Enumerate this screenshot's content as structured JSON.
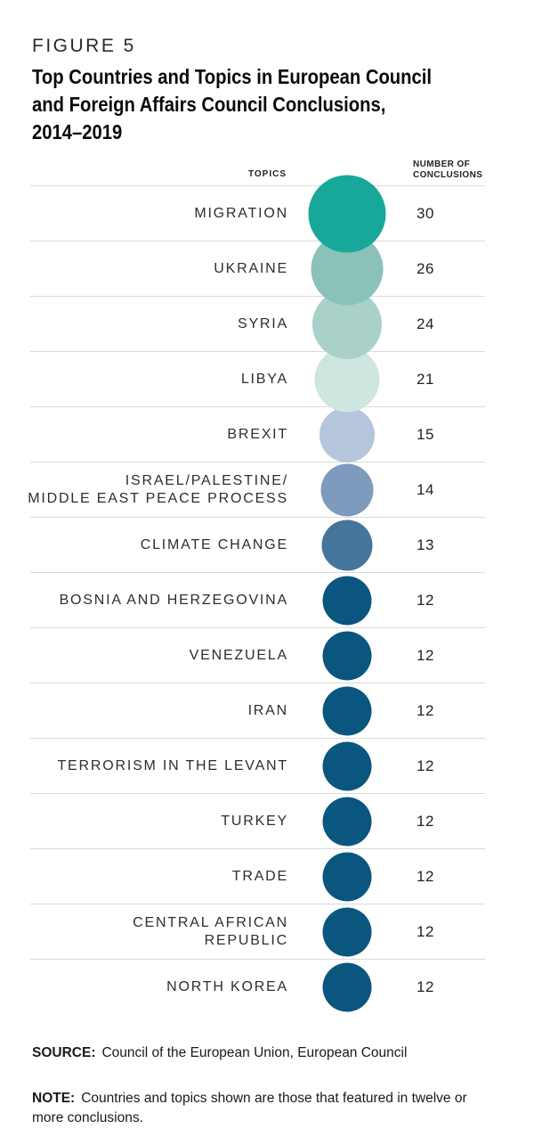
{
  "figure": {
    "label": "FIGURE 5",
    "title_lines": [
      "Top Countries and Topics in European Council",
      "and Foreign Affairs Council Conclusions,",
      "2014–2019"
    ]
  },
  "table": {
    "headers": {
      "topics": "TOPICS",
      "number_lines": [
        "NUMBER OF",
        "CONCLUSIONS"
      ]
    },
    "rows": [
      {
        "topic_lines": [
          "MIGRATION"
        ],
        "value": 30,
        "color": "#17a89a"
      },
      {
        "topic_lines": [
          "UKRAINE"
        ],
        "value": 26,
        "color": "#8ac2b9"
      },
      {
        "topic_lines": [
          "SYRIA"
        ],
        "value": 24,
        "color": "#a9d0c9"
      },
      {
        "topic_lines": [
          "LIBYA"
        ],
        "value": 21,
        "color": "#cfe5e0"
      },
      {
        "topic_lines": [
          "BREXIT"
        ],
        "value": 15,
        "color": "#b5c5dc"
      },
      {
        "topic_lines": [
          "ISRAEL/PALESTINE/",
          "MIDDLE EAST PEACE PROCESS"
        ],
        "value": 14,
        "color": "#7e9abd"
      },
      {
        "topic_lines": [
          "CLIMATE CHANGE"
        ],
        "value": 13,
        "color": "#45749d"
      },
      {
        "topic_lines": [
          "BOSNIA AND HERZEGOVINA"
        ],
        "value": 12,
        "color": "#0b567e"
      },
      {
        "topic_lines": [
          "VENEZUELA"
        ],
        "value": 12,
        "color": "#0b567e"
      },
      {
        "topic_lines": [
          "IRAN"
        ],
        "value": 12,
        "color": "#0b567e"
      },
      {
        "topic_lines": [
          "TERRORISM IN THE LEVANT"
        ],
        "value": 12,
        "color": "#0b567e"
      },
      {
        "topic_lines": [
          "TURKEY"
        ],
        "value": 12,
        "color": "#0b567e"
      },
      {
        "topic_lines": [
          "TRADE"
        ],
        "value": 12,
        "color": "#0b567e"
      },
      {
        "topic_lines": [
          "CENTRAL AFRICAN",
          "REPUBLIC"
        ],
        "value": 12,
        "color": "#0b567e"
      },
      {
        "topic_lines": [
          "NORTH KOREA"
        ],
        "value": 12,
        "color": "#0b567e"
      }
    ]
  },
  "footer": {
    "source_label": "SOURCE:",
    "source_text": "Council of the European Union, European Council",
    "note_label": "NOTE:",
    "note_text": "Countries and topics shown are those that featured in twelve or more conclusions."
  },
  "chart_data": {
    "type": "table",
    "mark": "proportional-circle",
    "title": "Top Countries and Topics in European Council and Foreign Affairs Council Conclusions, 2014–2019",
    "figure_label": "FIGURE 5",
    "category_column_label": "TOPICS",
    "value_column_label": "NUMBER OF CONCLUSIONS",
    "categories": [
      "MIGRATION",
      "UKRAINE",
      "SYRIA",
      "LIBYA",
      "BREXIT",
      "ISRAEL/PALESTINE/MIDDLE EAST PEACE PROCESS",
      "CLIMATE CHANGE",
      "BOSNIA AND HERZEGOVINA",
      "VENEZUELA",
      "IRAN",
      "TERRORISM IN THE LEVANT",
      "TURKEY",
      "TRADE",
      "CENTRAL AFRICAN REPUBLIC",
      "NORTH KOREA"
    ],
    "values": [
      30,
      26,
      24,
      21,
      15,
      14,
      13,
      12,
      12,
      12,
      12,
      12,
      12,
      12,
      12
    ],
    "value_range": [
      12,
      30
    ],
    "encoding": "circle area proportional to number of conclusions",
    "circle_colors": [
      "#17a89a",
      "#8ac2b9",
      "#a9d0c9",
      "#cfe5e0",
      "#b5c5dc",
      "#7e9abd",
      "#45749d",
      "#0b567e",
      "#0b567e",
      "#0b567e",
      "#0b567e",
      "#0b567e",
      "#0b567e",
      "#0b567e",
      "#0b567e"
    ],
    "grid": "horizontal row dividers",
    "legend": "none",
    "source": "Council of the European Union, European Council",
    "note": "Countries and topics shown are those that featured in twelve or more conclusions."
  }
}
